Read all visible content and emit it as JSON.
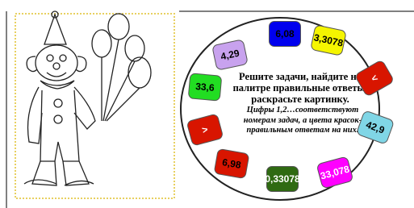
{
  "instructions": {
    "main": "Решите задачи, найдите на палитре правильные ответы, раскрасьте картинку.",
    "note": "Цифры 1,2…соответствуют номерам задач, а цвета красок-правильным ответам на них."
  },
  "palette": {
    "swatches": [
      {
        "label": "4,29",
        "color": "#c8a2ee",
        "text_color": "#000"
      },
      {
        "label": "6,08",
        "color": "#0000ee",
        "text_color": "#000"
      },
      {
        "label": "3,3078",
        "color": "#f5f500",
        "text_color": "#000"
      },
      {
        "label": "<",
        "color": "#d81500",
        "text_color": "#fff"
      },
      {
        "label": "42,9",
        "color": "#80d6e6",
        "text_color": "#000"
      },
      {
        "label": "33,078",
        "color": "#ff00ff",
        "text_color": "#fff"
      },
      {
        "label": "0,33078",
        "color": "#2f6a12",
        "text_color": "#fff"
      },
      {
        "label": "6,98",
        "color": "#d81500",
        "text_color": "#000"
      },
      {
        "label": ">",
        "color": "#d81500",
        "text_color": "#fff"
      },
      {
        "label": "33,6",
        "color": "#22dd22",
        "text_color": "#000"
      }
    ]
  }
}
